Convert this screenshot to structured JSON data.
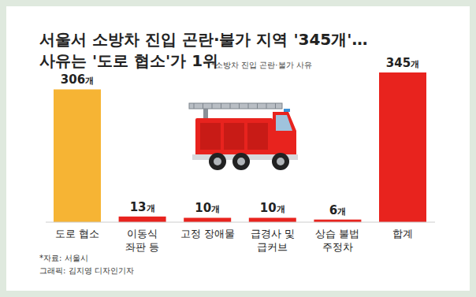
{
  "chart_data": {
    "type": "bar",
    "title": "서울서 소방차 진입 곤란·불가 지역 '345개'…\n사유는 '도로 협소'가 1위",
    "subtitle": "*소방차 진입 곤란·불가 사유",
    "categories": [
      "도로 협소",
      "이동식\n좌판 등",
      "고정 장애물",
      "급경사 및\n급커브",
      "상습 불법\n주정차",
      "합계"
    ],
    "values": [
      306,
      13,
      10,
      10,
      6,
      345
    ],
    "value_labels": [
      "306개",
      "13개",
      "10개",
      "10개",
      "6개",
      "345개"
    ],
    "colors": [
      "#f6b434",
      "#e8231e",
      "#e8231e",
      "#e8231e",
      "#e8231e",
      "#e8231e"
    ],
    "ylim": [
      0,
      345
    ],
    "tick_labels": false,
    "data_labels": true,
    "grid": false,
    "annotations": [
      "*자료: 서울시",
      "그래픽: 김지영 디자인기자"
    ]
  }
}
